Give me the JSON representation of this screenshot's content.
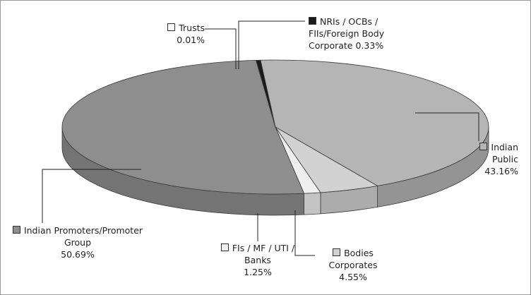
{
  "chart_data": {
    "type": "pie",
    "categories": [
      "Indian Public",
      "Bodies Corporates",
      "FIs / MF / UTI / Banks",
      "Indian Promoters/Promoter Group",
      "Trusts",
      "NRIs / OCBs / FIIs/Foreign Body Corporate"
    ],
    "values": [
      43.16,
      4.55,
      1.25,
      50.69,
      0.01,
      0.33
    ],
    "value_labels": [
      "43.16%",
      "4.55%",
      "1.25%",
      "50.69%",
      "0.01%",
      "0.33%"
    ],
    "colors": [
      "#b5b5b5",
      "#d2d2d2",
      "#efefef",
      "#8e8e8e",
      "#ffffff",
      "#1a1a1a"
    ]
  }
}
